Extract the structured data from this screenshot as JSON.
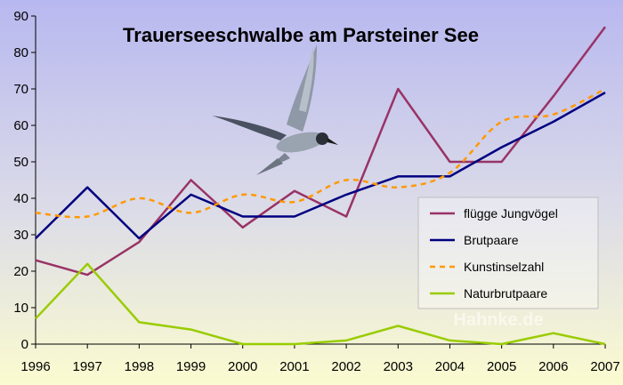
{
  "chart_data": {
    "type": "line",
    "title": "Trauerseeschwalbe am Parsteiner See",
    "x": [
      "1996",
      "1997",
      "1998",
      "1999",
      "2000",
      "2001",
      "2002",
      "2003",
      "2004",
      "2005",
      "2006",
      "2007"
    ],
    "ylim": [
      0,
      90
    ],
    "yticks": [
      "0",
      "10",
      "20",
      "30",
      "40",
      "50",
      "60",
      "70",
      "80",
      "90"
    ],
    "legend_position": "right",
    "grid": false,
    "series": [
      {
        "name": "flügge Jungvögel",
        "color": "#993366",
        "dash": "solid",
        "values": [
          23,
          19,
          28,
          45,
          32,
          42,
          35,
          70,
          50,
          50,
          68,
          87
        ]
      },
      {
        "name": "Brutpaare",
        "color": "#000080",
        "dash": "solid",
        "values": [
          29,
          43,
          29,
          41,
          35,
          35,
          41,
          46,
          46,
          54,
          61,
          69
        ]
      },
      {
        "name": "Kunstinselzahl",
        "color": "#ff9900",
        "dash": "dashed",
        "values": [
          36,
          35,
          40,
          36,
          41,
          39,
          45,
          43,
          47,
          61,
          63,
          70
        ]
      },
      {
        "name": "Naturbrutpaare",
        "color": "#99cc00",
        "dash": "solid",
        "values": [
          7,
          22,
          6,
          4,
          0,
          0,
          1,
          5,
          1,
          0,
          3,
          0
        ]
      }
    ]
  },
  "watermark": "Hahnke.de",
  "decoration": {
    "bird_icon": "tern-in-flight-icon"
  }
}
